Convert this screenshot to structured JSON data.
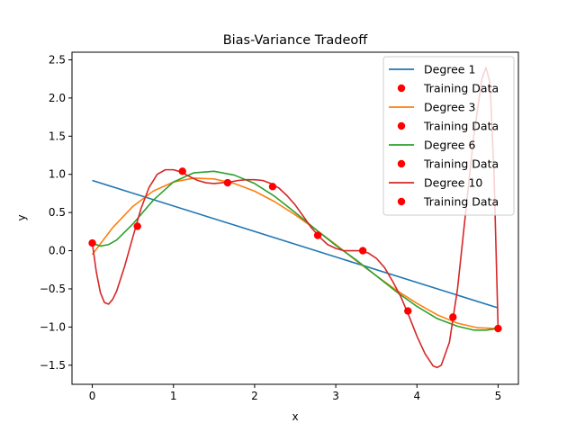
{
  "chart_data": {
    "type": "line",
    "title": "Bias-Variance Tradeoff",
    "xlabel": "x",
    "ylabel": "y",
    "xlim": [
      -0.25,
      5.25
    ],
    "ylim": [
      -1.75,
      2.6
    ],
    "xticks": [
      0,
      1,
      2,
      3,
      4,
      5
    ],
    "xtick_labels": [
      "0",
      "1",
      "2",
      "3",
      "4",
      "5"
    ],
    "yticks": [
      -1.5,
      -1.0,
      -0.5,
      0.0,
      0.5,
      1.0,
      1.5,
      2.0,
      2.5
    ],
    "ytick_labels": [
      "−1.5",
      "−1.0",
      "−0.5",
      "0.0",
      "0.5",
      "1.0",
      "1.5",
      "2.0",
      "2.5"
    ],
    "grid": false,
    "legend_position": "top-right",
    "training_data": {
      "x": [
        0.0,
        0.556,
        1.111,
        1.667,
        2.222,
        2.778,
        3.333,
        3.889,
        4.444,
        5.0
      ],
      "y": [
        0.1,
        0.32,
        1.04,
        0.89,
        0.84,
        0.2,
        0.0,
        -0.79,
        -0.87,
        -1.02
      ],
      "color": "#ff0000"
    },
    "series": [
      {
        "name": "Degree 1",
        "color": "#1f77b4",
        "x": [
          0,
          5
        ],
        "y": [
          0.92,
          -0.75
        ]
      },
      {
        "name": "Degree 3",
        "color": "#ff7f0e",
        "x": [
          0,
          0.25,
          0.5,
          0.75,
          1.0,
          1.25,
          1.5,
          1.75,
          2.0,
          2.25,
          2.5,
          2.75,
          3.0,
          3.25,
          3.5,
          3.75,
          4.0,
          4.25,
          4.5,
          4.75,
          5.0
        ],
        "y": [
          -0.05,
          0.3,
          0.58,
          0.78,
          0.9,
          0.95,
          0.94,
          0.88,
          0.78,
          0.64,
          0.47,
          0.28,
          0.08,
          -0.13,
          -0.33,
          -0.52,
          -0.69,
          -0.84,
          -0.95,
          -1.01,
          -1.02
        ]
      },
      {
        "name": "Degree 6",
        "color": "#2ca02c",
        "x": [
          0,
          0.1,
          0.2,
          0.3,
          0.5,
          0.75,
          1.0,
          1.25,
          1.5,
          1.75,
          2.0,
          2.25,
          2.5,
          2.75,
          3.0,
          3.25,
          3.5,
          3.75,
          4.0,
          4.25,
          4.5,
          4.7,
          4.85,
          5.0
        ],
        "y": [
          0.1,
          0.06,
          0.08,
          0.14,
          0.35,
          0.66,
          0.9,
          1.02,
          1.04,
          0.99,
          0.88,
          0.71,
          0.5,
          0.28,
          0.07,
          -0.12,
          -0.33,
          -0.54,
          -0.73,
          -0.89,
          -0.99,
          -1.04,
          -1.04,
          -1.02
        ]
      },
      {
        "name": "Degree 10",
        "color": "#d62728",
        "x": [
          0.0,
          0.05,
          0.1,
          0.15,
          0.2,
          0.25,
          0.3,
          0.4,
          0.5,
          0.6,
          0.7,
          0.8,
          0.9,
          1.0,
          1.1,
          1.2,
          1.3,
          1.4,
          1.5,
          1.6,
          1.7,
          1.8,
          1.9,
          2.0,
          2.1,
          2.2,
          2.3,
          2.4,
          2.5,
          2.6,
          2.7,
          2.8,
          2.9,
          3.0,
          3.1,
          3.2,
          3.3,
          3.4,
          3.5,
          3.6,
          3.7,
          3.8,
          3.9,
          4.0,
          4.1,
          4.2,
          4.25,
          4.3,
          4.4,
          4.5,
          4.6,
          4.7,
          4.8,
          4.85,
          4.9,
          4.95,
          5.0
        ],
        "y": [
          0.1,
          -0.28,
          -0.55,
          -0.68,
          -0.7,
          -0.64,
          -0.53,
          -0.2,
          0.18,
          0.55,
          0.83,
          1.0,
          1.06,
          1.06,
          1.03,
          0.97,
          0.92,
          0.89,
          0.88,
          0.89,
          0.9,
          0.92,
          0.93,
          0.93,
          0.92,
          0.88,
          0.82,
          0.72,
          0.6,
          0.45,
          0.3,
          0.18,
          0.08,
          0.03,
          0.0,
          0.0,
          0.0,
          -0.03,
          -0.1,
          -0.22,
          -0.4,
          -0.6,
          -0.85,
          -1.12,
          -1.35,
          -1.51,
          -1.53,
          -1.5,
          -1.2,
          -0.5,
          0.5,
          1.5,
          2.25,
          2.4,
          2.2,
          1.0,
          -1.02
        ]
      }
    ],
    "legend_entries": [
      {
        "label": "Degree 1",
        "kind": "line",
        "color": "#1f77b4"
      },
      {
        "label": "Training Data",
        "kind": "marker",
        "color": "#ff0000"
      },
      {
        "label": "Degree 3",
        "kind": "line",
        "color": "#ff7f0e"
      },
      {
        "label": "Training Data",
        "kind": "marker",
        "color": "#ff0000"
      },
      {
        "label": "Degree 6",
        "kind": "line",
        "color": "#2ca02c"
      },
      {
        "label": "Training Data",
        "kind": "marker",
        "color": "#ff0000"
      },
      {
        "label": "Degree 10",
        "kind": "line",
        "color": "#d62728"
      },
      {
        "label": "Training Data",
        "kind": "marker",
        "color": "#ff0000"
      }
    ]
  }
}
